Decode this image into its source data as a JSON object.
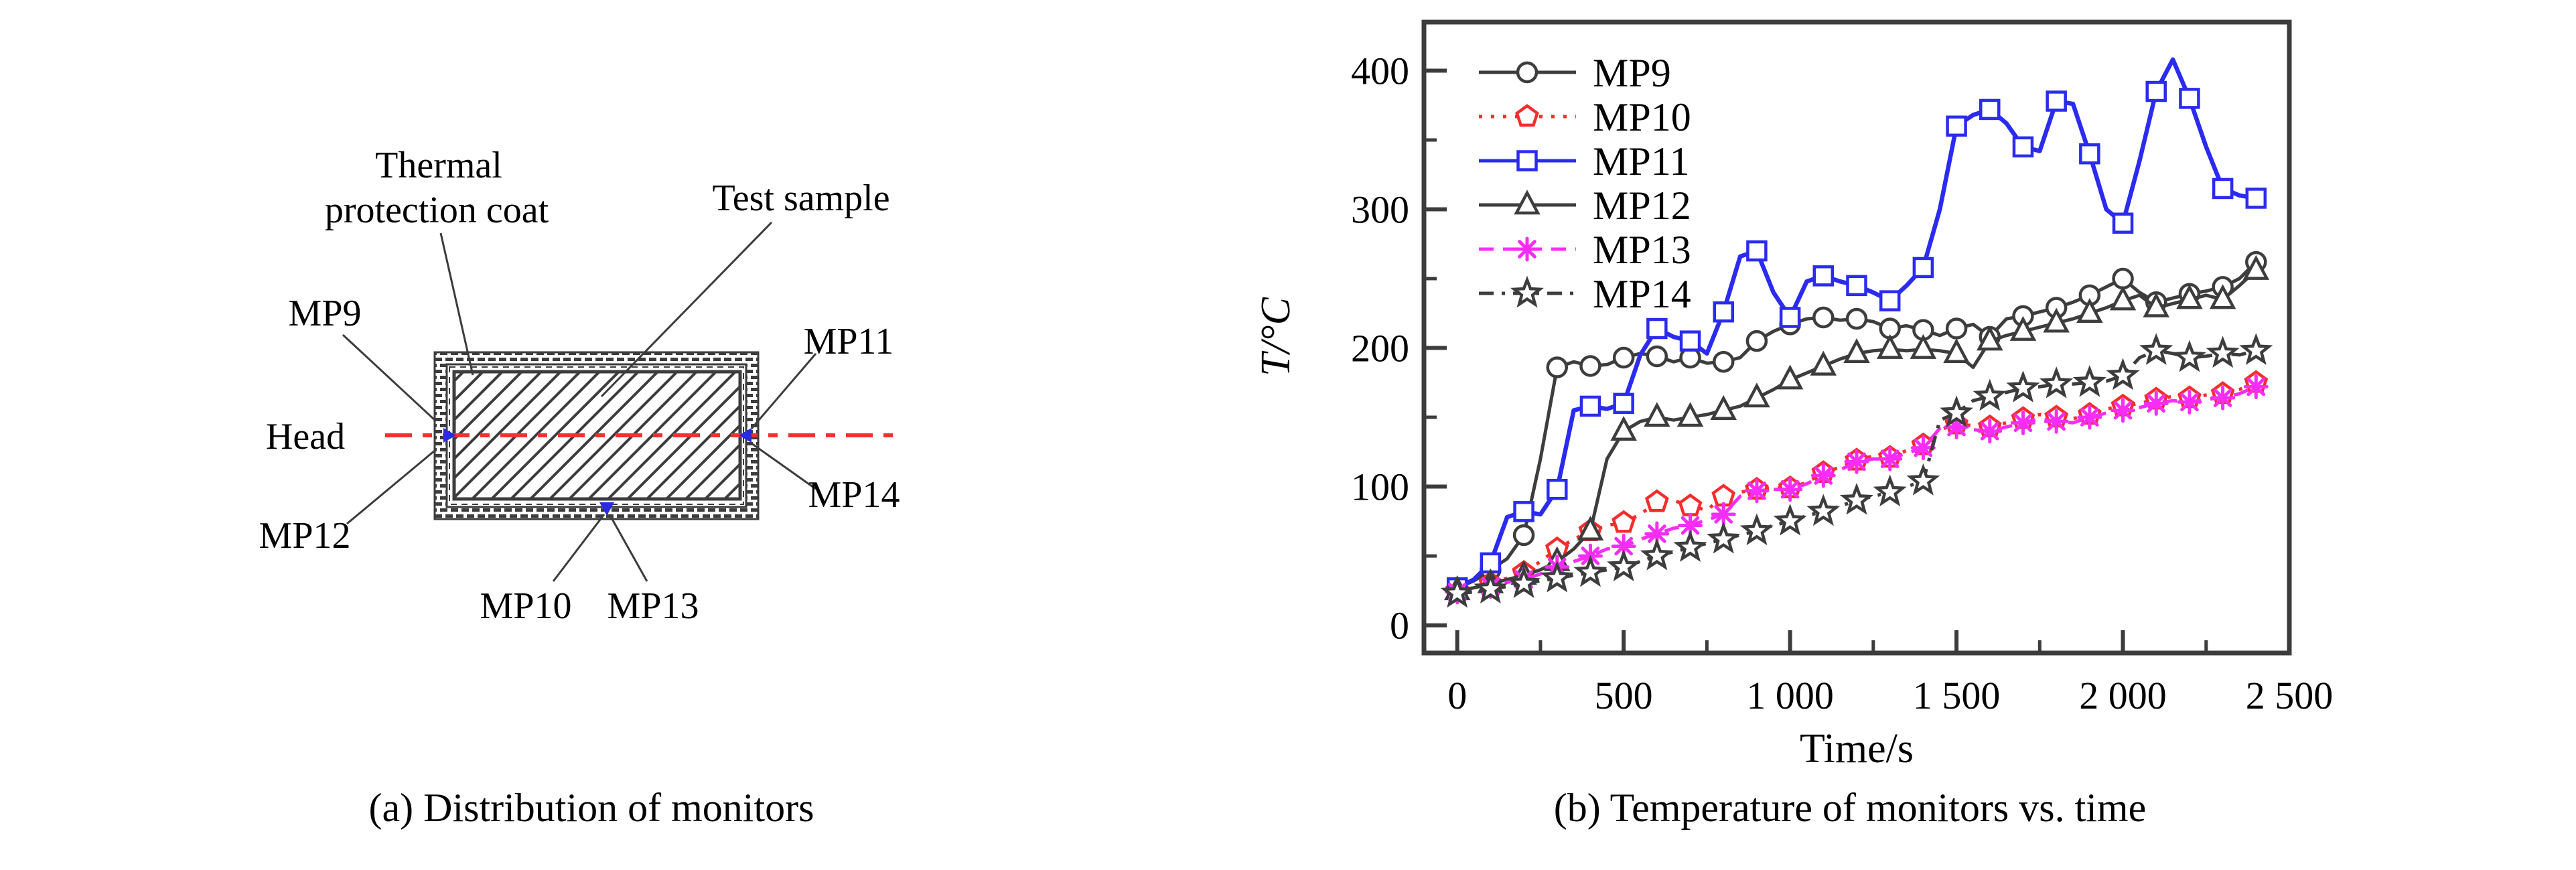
{
  "figure": {
    "panel_a": {
      "caption": "(a) Distribution of monitors",
      "labels": {
        "thermal_coat_line1": "Thermal",
        "thermal_coat_line2": "protection coat",
        "test_sample": "Test sample",
        "mp9": "MP9",
        "head": "Head",
        "mp12": "MP12",
        "mp10": "MP10",
        "mp13": "MP13",
        "mp11": "MP11",
        "mp14": "MP14"
      },
      "colors": {
        "centerline_red": "#f23030",
        "monitor_marker_blue": "#2a2ae0",
        "outline_dark": "#3c3c3c"
      }
    },
    "panel_b": {
      "caption": "(b) Temperature of monitors vs. time"
    }
  },
  "chart_data": {
    "type": "line",
    "title": "",
    "xlabel": "Time/s",
    "ylabel": "T/°C",
    "xlim": [
      -100,
      2500
    ],
    "ylim": [
      -20,
      435
    ],
    "grid": false,
    "legend_position": "top-left-inside",
    "marker_every": 2,
    "xticks": {
      "values": [
        0,
        500,
        1000,
        1500,
        2000,
        2500
      ],
      "labels": [
        "0",
        "500",
        "1 000",
        "1 500",
        "2 000",
        "2 500"
      ],
      "minor": [
        250,
        750,
        1250,
        1750,
        2250
      ]
    },
    "yticks": {
      "values": [
        0,
        100,
        200,
        300,
        400
      ],
      "labels": [
        "0",
        "100",
        "200",
        "300",
        "400"
      ],
      "minor": [
        50,
        150,
        250,
        350
      ]
    },
    "x": [
      0,
      50,
      100,
      150,
      200,
      250,
      300,
      350,
      400,
      450,
      500,
      550,
      600,
      650,
      700,
      750,
      800,
      850,
      900,
      950,
      1000,
      1050,
      1100,
      1150,
      1200,
      1250,
      1300,
      1350,
      1400,
      1450,
      1500,
      1550,
      1600,
      1650,
      1700,
      1750,
      1800,
      1850,
      1900,
      1950,
      2000,
      2050,
      2100,
      2150,
      2200,
      2250,
      2300,
      2350,
      2400
    ],
    "series": [
      {
        "name": "MP9",
        "color": "#3d3d3d",
        "marker": "circle",
        "line_style": "solid",
        "values": [
          27,
          32,
          40,
          48,
          65,
          120,
          186,
          190,
          187,
          188,
          193,
          196,
          194,
          190,
          193,
          189,
          190,
          193,
          205,
          212,
          217,
          221,
          222,
          220,
          221,
          219,
          214,
          216,
          213,
          209,
          214,
          217,
          208,
          221,
          223,
          226,
          229,
          233,
          238,
          244,
          250,
          240,
          233,
          236,
          239,
          241,
          244,
          250,
          262
        ]
      },
      {
        "name": "MP10",
        "color": "#f52d2d",
        "marker": "pentagon",
        "line_style": "dot",
        "values": [
          25,
          27,
          30,
          34,
          38,
          46,
          55,
          62,
          68,
          72,
          74,
          80,
          89,
          90,
          86,
          83,
          93,
          96,
          98,
          99,
          99,
          103,
          110,
          114,
          119,
          122,
          121,
          126,
          130,
          141,
          145,
          144,
          143,
          146,
          149,
          152,
          150,
          149,
          152,
          156,
          158,
          160,
          163,
          165,
          164,
          166,
          167,
          170,
          175
        ]
      },
      {
        "name": "MP11",
        "color": "#2b2bf0",
        "marker": "square",
        "line_style": "solid",
        "values": [
          27,
          33,
          45,
          78,
          82,
          80,
          98,
          155,
          158,
          156,
          160,
          195,
          214,
          208,
          205,
          196,
          226,
          266,
          270,
          240,
          222,
          248,
          252,
          248,
          245,
          240,
          234,
          245,
          258,
          300,
          360,
          368,
          372,
          362,
          345,
          342,
          378,
          376,
          340,
          300,
          290,
          335,
          385,
          408,
          380,
          345,
          315,
          310,
          308
        ]
      },
      {
        "name": "MP12",
        "color": "#3d3d3d",
        "marker": "triangle",
        "line_style": "solid",
        "values": [
          25,
          27,
          30,
          33,
          36,
          40,
          46,
          55,
          68,
          120,
          140,
          147,
          150,
          148,
          150,
          152,
          155,
          158,
          164,
          170,
          177,
          182,
          187,
          192,
          196,
          198,
          199,
          198,
          199,
          198,
          196,
          186,
          205,
          209,
          212,
          215,
          218,
          221,
          225,
          229,
          234,
          238,
          229,
          232,
          235,
          238,
          235,
          245,
          256
        ]
      },
      {
        "name": "MP13",
        "color": "#f72df7",
        "marker": "asterisk",
        "line_style": "dash",
        "values": [
          24,
          26,
          28,
          31,
          33,
          37,
          42,
          46,
          50,
          55,
          57,
          62,
          66,
          70,
          72,
          76,
          80,
          93,
          97,
          98,
          98,
          102,
          108,
          112,
          118,
          120,
          120,
          124,
          128,
          142,
          143,
          141,
          140,
          143,
          146,
          149,
          147,
          146,
          150,
          153,
          155,
          157,
          160,
          162,
          161,
          163,
          164,
          167,
          172
        ]
      },
      {
        "name": "MP14",
        "color": "#3d3d3d",
        "marker": "star",
        "line_style": "dashdot",
        "values": [
          23,
          24,
          26,
          28,
          30,
          32,
          34,
          36,
          38,
          40,
          42,
          46,
          50,
          53,
          56,
          59,
          62,
          65,
          68,
          72,
          75,
          79,
          82,
          86,
          90,
          93,
          96,
          100,
          104,
          148,
          153,
          162,
          165,
          168,
          171,
          172,
          174,
          174,
          175,
          176,
          180,
          193,
          198,
          196,
          193,
          194,
          196,
          195,
          198
        ]
      }
    ]
  }
}
